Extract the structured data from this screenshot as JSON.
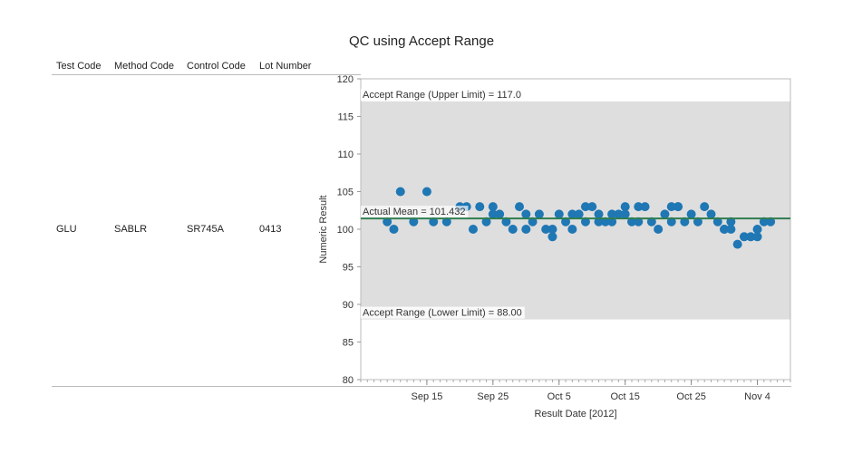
{
  "title": "QC using Accept Range",
  "table": {
    "headers": [
      "Test Code",
      "Method Code",
      "Control Code",
      "Lot Number"
    ],
    "row": [
      "GLU",
      "SABLR",
      "SR745A",
      "0413"
    ]
  },
  "chart_data": {
    "type": "scatter",
    "title": "QC using Accept Range",
    "xlabel": "Result Date [2012]",
    "ylabel": "Numeric Result",
    "xlim": [
      "2012-09-05",
      "2012-11-09"
    ],
    "ylim": [
      80,
      120
    ],
    "yticks": [
      80,
      85,
      90,
      95,
      100,
      105,
      110,
      115,
      120
    ],
    "xticks": [
      {
        "date": "2012-09-15",
        "label": "Sep 15"
      },
      {
        "date": "2012-09-25",
        "label": "Sep 25"
      },
      {
        "date": "2012-10-05",
        "label": "Oct 5"
      },
      {
        "date": "2012-10-15",
        "label": "Oct 15"
      },
      {
        "date": "2012-10-25",
        "label": "Oct 25"
      },
      {
        "date": "2012-11-04",
        "label": "Nov 4"
      }
    ],
    "accept_range": {
      "upper": 117.0,
      "lower": 88.0,
      "upper_label": "Accept Range (Upper Limit) = 117.0",
      "lower_label": "Accept Range (Lower Limit) = 88.00"
    },
    "mean": {
      "value": 101.432,
      "label": "Actual Mean = 101.432"
    },
    "colors": {
      "points": "#1f77b4",
      "band": "#dedede",
      "mean": "#2e7d4f"
    },
    "points": [
      [
        "2012-09-09",
        101
      ],
      [
        "2012-09-10",
        100
      ],
      [
        "2012-09-11",
        105
      ],
      [
        "2012-09-13",
        101
      ],
      [
        "2012-09-15",
        105
      ],
      [
        "2012-09-16",
        101
      ],
      [
        "2012-09-18",
        101
      ],
      [
        "2012-09-20",
        103
      ],
      [
        "2012-09-21",
        103
      ],
      [
        "2012-09-22",
        100
      ],
      [
        "2012-09-23",
        103
      ],
      [
        "2012-09-24",
        101
      ],
      [
        "2012-09-25",
        102
      ],
      [
        "2012-09-25",
        103
      ],
      [
        "2012-09-26",
        102
      ],
      [
        "2012-09-27",
        101
      ],
      [
        "2012-09-28",
        100
      ],
      [
        "2012-09-29",
        103
      ],
      [
        "2012-09-30",
        102
      ],
      [
        "2012-09-30",
        100
      ],
      [
        "2012-10-01",
        101
      ],
      [
        "2012-10-02",
        102
      ],
      [
        "2012-10-03",
        100
      ],
      [
        "2012-10-04",
        99
      ],
      [
        "2012-10-04",
        100
      ],
      [
        "2012-10-05",
        102
      ],
      [
        "2012-10-06",
        101
      ],
      [
        "2012-10-07",
        100
      ],
      [
        "2012-10-07",
        102
      ],
      [
        "2012-10-08",
        102
      ],
      [
        "2012-10-09",
        101
      ],
      [
        "2012-10-09",
        103
      ],
      [
        "2012-10-10",
        103
      ],
      [
        "2012-10-11",
        101
      ],
      [
        "2012-10-11",
        102
      ],
      [
        "2012-10-12",
        101
      ],
      [
        "2012-10-13",
        101
      ],
      [
        "2012-10-13",
        102
      ],
      [
        "2012-10-14",
        102
      ],
      [
        "2012-10-15",
        102
      ],
      [
        "2012-10-15",
        103
      ],
      [
        "2012-10-16",
        101
      ],
      [
        "2012-10-17",
        101
      ],
      [
        "2012-10-17",
        103
      ],
      [
        "2012-10-18",
        103
      ],
      [
        "2012-10-19",
        101
      ],
      [
        "2012-10-20",
        100
      ],
      [
        "2012-10-21",
        102
      ],
      [
        "2012-10-22",
        103
      ],
      [
        "2012-10-22",
        101
      ],
      [
        "2012-10-23",
        103
      ],
      [
        "2012-10-23",
        103
      ],
      [
        "2012-10-24",
        101
      ],
      [
        "2012-10-25",
        102
      ],
      [
        "2012-10-26",
        101
      ],
      [
        "2012-10-27",
        103
      ],
      [
        "2012-10-28",
        102
      ],
      [
        "2012-10-29",
        101
      ],
      [
        "2012-10-30",
        100
      ],
      [
        "2012-10-30",
        100
      ],
      [
        "2012-10-31",
        101
      ],
      [
        "2012-10-31",
        100
      ],
      [
        "2012-11-01",
        98
      ],
      [
        "2012-11-02",
        99
      ],
      [
        "2012-11-03",
        99
      ],
      [
        "2012-11-04",
        99
      ],
      [
        "2012-11-04",
        100
      ],
      [
        "2012-11-05",
        101
      ],
      [
        "2012-11-06",
        101
      ]
    ]
  }
}
